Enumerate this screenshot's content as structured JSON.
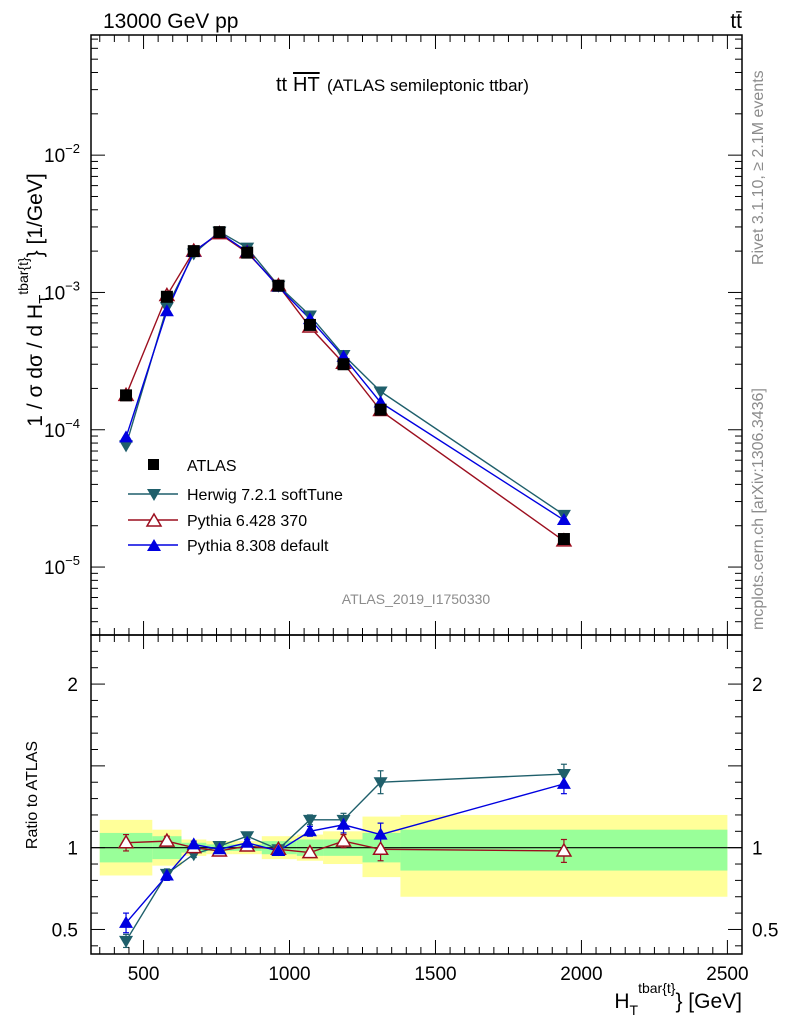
{
  "header": {
    "beam": "13000 GeV pp",
    "process": "tt̄"
  },
  "side_labels": {
    "rivet": "Rivet 3.1.10, ≥ 2.1M events",
    "source": "mcplots.cern.ch [arXiv:1306.3436]"
  },
  "colors": {
    "atlas": "#000000",
    "herwig": "#1f5f6b",
    "pythia6": "#9c0f1f",
    "pythia8": "#0000e0",
    "band_inner": "#99ff99",
    "band_outer": "#ffff99"
  },
  "chart_data": {
    "type": "line",
    "title_main": "tt",
    "title_over": "HT",
    "title_sub": "(ATLAS semileptonic ttbar)",
    "analysis_id": "ATLAS_2019_I1750330",
    "ylabel_main": "1 / σ dσ / d H",
    "ylabel_sub": "T",
    "ylabel_sup": "tbar{t}",
    "ylabel_tail": "} [1/GeV]",
    "ratio_ylabel": "Ratio to ATLAS",
    "xlabel_main": "H",
    "xlabel_sub": "T",
    "xlabel_sup": "tbar{t}",
    "xlabel_tail": "} [GeV]",
    "xlim": [
      320,
      2550
    ],
    "ylim_main": [
      3.2e-06,
      0.075
    ],
    "ylim_ratio": [
      0.35,
      2.3
    ],
    "y_log": true,
    "x_ticks": [
      500,
      1000,
      1500,
      2000,
      2500
    ],
    "x_tick_labels": [
      "500",
      "1000",
      "1500",
      "2000",
      "2500"
    ],
    "main_ticks": [
      1e-05,
      0.0001,
      0.001,
      0.01
    ],
    "main_tick_labels": [
      {
        "mant": "10",
        "exp": "−5"
      },
      {
        "mant": "10",
        "exp": "−4"
      },
      {
        "mant": "10",
        "exp": "−3"
      },
      {
        "mant": "10",
        "exp": "−2"
      }
    ],
    "ratio_ticks": [
      0.5,
      1,
      2
    ],
    "ratio_tick_labels": [
      "0.5",
      "1",
      "2"
    ],
    "bins": [
      {
        "lo": 350,
        "hi": 530,
        "x": 440,
        "inner": [
          0.91,
          1.09
        ],
        "outer": [
          0.83,
          1.17
        ]
      },
      {
        "lo": 530,
        "hi": 630,
        "x": 580,
        "inner": [
          0.93,
          1.07
        ],
        "outer": [
          0.89,
          1.11
        ]
      },
      {
        "lo": 630,
        "hi": 715,
        "x": 672,
        "inner": [
          0.97,
          1.03
        ],
        "outer": [
          0.95,
          1.05
        ]
      },
      {
        "lo": 715,
        "hi": 805,
        "x": 760,
        "inner": [
          0.98,
          1.02
        ],
        "outer": [
          0.96,
          1.04
        ]
      },
      {
        "lo": 805,
        "hi": 905,
        "x": 855,
        "inner": [
          0.98,
          1.02
        ],
        "outer": [
          0.96,
          1.04
        ]
      },
      {
        "lo": 905,
        "hi": 1025,
        "x": 962,
        "inner": [
          0.96,
          1.04
        ],
        "outer": [
          0.93,
          1.07
        ]
      },
      {
        "lo": 1025,
        "hi": 1115,
        "x": 1070,
        "inner": [
          0.95,
          1.05
        ],
        "outer": [
          0.92,
          1.08
        ]
      },
      {
        "lo": 1115,
        "hi": 1250,
        "x": 1185,
        "inner": [
          0.95,
          1.05
        ],
        "outer": [
          0.9,
          1.1
        ]
      },
      {
        "lo": 1250,
        "hi": 1380,
        "x": 1312,
        "inner": [
          0.91,
          1.09
        ],
        "outer": [
          0.82,
          1.19
        ]
      },
      {
        "lo": 1380,
        "hi": 2500,
        "x": 1940,
        "inner": [
          0.86,
          1.11
        ],
        "outer": [
          0.7,
          1.2
        ]
      }
    ],
    "series": [
      {
        "name": "ATLAS",
        "marker": "square",
        "color": "#000000",
        "values": [
          0.000178,
          0.00093,
          0.002,
          0.00275,
          0.00195,
          0.00112,
          0.00058,
          0.0003,
          0.00014,
          1.6e-05
        ],
        "ratio": [
          1,
          1,
          1,
          1,
          1,
          1,
          1,
          1,
          1,
          1
        ]
      },
      {
        "name": "Herwig 7.2.1 softTune",
        "marker": "triangle-down",
        "color": "#1f5f6b",
        "values": [
          7.7e-05,
          0.00078,
          0.00192,
          0.00277,
          0.00212,
          0.00112,
          0.00068,
          0.00035,
          0.00019,
          2.4e-05
        ],
        "ratio": [
          0.43,
          0.84,
          0.96,
          1.01,
          1.07,
          0.99,
          1.17,
          1.17,
          1.4,
          1.45
        ],
        "ratio_err": [
          0.04,
          0.03,
          0.02,
          0.02,
          0.02,
          0.02,
          0.03,
          0.04,
          0.07,
          0.06
        ]
      },
      {
        "name": "Pythia 6.428 370",
        "marker": "triangle-open",
        "color": "#9c0f1f",
        "values": [
          0.000178,
          0.00095,
          0.002,
          0.00268,
          0.00195,
          0.00112,
          0.00056,
          0.000305,
          0.000138,
          1.55e-05
        ],
        "ratio": [
          1.03,
          1.04,
          1.0,
          0.98,
          1.01,
          0.99,
          0.97,
          1.04,
          0.99,
          0.98
        ],
        "ratio_err": [
          0.05,
          0.03,
          0.02,
          0.02,
          0.02,
          0.02,
          0.03,
          0.04,
          0.07,
          0.07
        ]
      },
      {
        "name": "Pythia 8.308 default",
        "marker": "triangle-up",
        "color": "#0000e0",
        "values": [
          8.8e-05,
          0.00073,
          0.00198,
          0.00272,
          0.00198,
          0.0011,
          0.00064,
          0.00034,
          0.000158,
          2.2e-05
        ],
        "ratio": [
          0.54,
          0.83,
          1.02,
          0.99,
          1.03,
          0.98,
          1.1,
          1.14,
          1.08,
          1.39
        ],
        "ratio_err": [
          0.06,
          0.03,
          0.02,
          0.02,
          0.02,
          0.02,
          0.03,
          0.05,
          0.07,
          0.06
        ]
      }
    ],
    "legend_position": "lower-left"
  }
}
